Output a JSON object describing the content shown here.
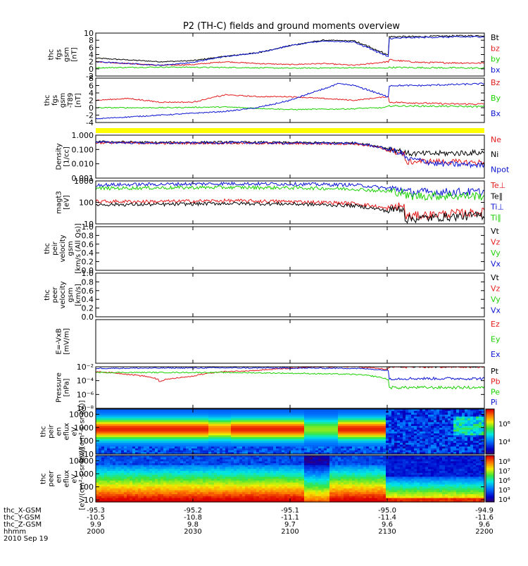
{
  "title": "P2 (TH-C) fields and ground moments overview",
  "chart_data": [
    {
      "type": "line",
      "ylabel": [
        "thc",
        "fgs",
        "gsm",
        "[nT]"
      ],
      "ylim": [
        -2,
        10
      ],
      "yticks": [
        -2,
        0,
        2,
        4,
        6,
        8,
        10
      ],
      "legend": [
        {
          "name": "Bt",
          "color": "#000000"
        },
        {
          "name": "bz",
          "color": "#e41a1c"
        },
        {
          "name": "by",
          "color": "#1bd100"
        },
        {
          "name": "bx",
          "color": "#0a14d2"
        }
      ],
      "series": [
        {
          "name": "Bt",
          "x": [
            2000,
            2010,
            2020,
            2030,
            2040,
            2050,
            2055,
            2060,
            2070,
            2080,
            2090,
            2100,
            2110,
            2120,
            2129,
            2131,
            2140,
            2150,
            2160,
            2170,
            2180,
            2190,
            2200
          ],
          "y": [
            3,
            2.5,
            2,
            2.3,
            3.5,
            4.5,
            5.5,
            6.5,
            8,
            7.8,
            4,
            2.6,
            2.4,
            2.1,
            1.5,
            9,
            9,
            9.2,
            9.3,
            9.5,
            9.8,
            9.7,
            9.5
          ]
        },
        {
          "name": "bz",
          "x": [
            2000,
            2010,
            2020,
            2030,
            2040,
            2050,
            2060,
            2070,
            2080,
            2090,
            2100,
            2110,
            2120,
            2129,
            2131,
            2140,
            2160,
            2180,
            2200
          ],
          "y": [
            2,
            1.5,
            1,
            1.2,
            2,
            1.5,
            1.2,
            1.5,
            1,
            2,
            2,
            2.2,
            2,
            1,
            2.5,
            1.8,
            1.6,
            1.2,
            1.5
          ]
        },
        {
          "name": "by",
          "x": [
            2000,
            2020,
            2040,
            2060,
            2080,
            2100,
            2120,
            2129,
            2131,
            2160,
            2200
          ],
          "y": [
            0.3,
            0.5,
            0.4,
            0.2,
            0.3,
            0.6,
            0.3,
            0.2,
            0.4,
            0.2,
            0.3
          ]
        },
        {
          "name": "bx",
          "x": [
            2000,
            2010,
            2020,
            2030,
            2040,
            2050,
            2060,
            2070,
            2080,
            2090,
            2100,
            2110,
            2120,
            2129,
            2131,
            2140,
            2160,
            2180,
            2200
          ],
          "y": [
            2,
            1.5,
            1,
            1.8,
            3.5,
            4.5,
            6.5,
            7.8,
            7.5,
            3.5,
            0.5,
            -0.5,
            0,
            -0.5,
            8.5,
            8.8,
            9,
            9.5,
            9.4
          ]
        }
      ]
    },
    {
      "type": "line",
      "ylabel": [
        "thc",
        "fgs",
        "gsm",
        "-T89",
        "[nT]"
      ],
      "ylim": [
        -4,
        8
      ],
      "yticks": [
        -4,
        -2,
        0,
        2,
        4,
        6,
        8
      ],
      "legend": [
        {
          "name": "Bz",
          "color": "#e41a1c"
        },
        {
          "name": "By",
          "color": "#1bd100"
        },
        {
          "name": "Bx",
          "color": "#0a14d2"
        }
      ],
      "series": [
        {
          "name": "Bz",
          "x": [
            2000,
            2010,
            2020,
            2030,
            2040,
            2050,
            2060,
            2070,
            2080,
            2090,
            2100,
            2110,
            2120,
            2129,
            2131,
            2150,
            2170,
            2200
          ],
          "y": [
            2,
            2.5,
            1.5,
            1.5,
            3.5,
            3,
            3,
            2.5,
            2,
            3,
            4,
            3,
            3,
            2,
            1.5,
            1,
            1,
            1.2
          ]
        },
        {
          "name": "By",
          "x": [
            2000,
            2020,
            2040,
            2060,
            2080,
            2100,
            2120,
            2129,
            2131,
            2160,
            2200
          ],
          "y": [
            0,
            0,
            0.2,
            -0.5,
            -0.3,
            0,
            -0.2,
            0,
            0.5,
            0.3,
            0.4
          ]
        },
        {
          "name": "Bx",
          "x": [
            2000,
            2010,
            2020,
            2030,
            2040,
            2050,
            2060,
            2070,
            2075,
            2080,
            2090,
            2100,
            2110,
            2120,
            2129,
            2131,
            2140,
            2160,
            2180,
            2200
          ],
          "y": [
            -3,
            -2.5,
            -2,
            -1.5,
            -1,
            0,
            2,
            5,
            6.5,
            6,
            3,
            0,
            -2,
            -3,
            -2,
            6,
            6,
            6.5,
            7.5,
            7
          ]
        }
      ]
    },
    {
      "type": "line",
      "ylabel": [
        "Density",
        "[1/cc]"
      ],
      "yscale": "log",
      "ylim": [
        0.001,
        1
      ],
      "yticks": [
        0.001,
        0.01,
        0.1,
        1
      ],
      "ytick_labels": [
        "0.001",
        "0.010",
        "0.100",
        "1.000"
      ],
      "legend": [
        {
          "name": "Ne",
          "color": "#e41a1c"
        },
        {
          "name": "Ni",
          "color": "#000000"
        },
        {
          "name": "Npot",
          "color": "#0a14d2"
        }
      ],
      "series": [
        {
          "name": "Ni",
          "x": [
            2000,
            2020,
            2040,
            2060,
            2080,
            2090,
            2095,
            2100,
            2110,
            2129,
            2131,
            2140,
            2160,
            2180,
            2200
          ],
          "y": [
            0.35,
            0.3,
            0.32,
            0.3,
            0.28,
            0.12,
            0.07,
            0.2,
            0.3,
            0.25,
            0.06,
            0.05,
            0.06,
            0.05,
            0.06
          ]
        },
        {
          "name": "Ne",
          "x": [
            2000,
            2020,
            2040,
            2060,
            2080,
            2090,
            2095,
            2100,
            2110,
            2129,
            2131,
            2140,
            2160,
            2180,
            2200
          ],
          "y": [
            0.3,
            0.27,
            0.28,
            0.26,
            0.25,
            0.09,
            0.05,
            0.18,
            0.28,
            0.22,
            0.01,
            0.015,
            0.012,
            0.03,
            0.04
          ]
        },
        {
          "name": "Npot",
          "x": [
            2000,
            2020,
            2040,
            2060,
            2080,
            2090,
            2095,
            2100,
            2110,
            2129,
            2131,
            2145,
            2160,
            2175,
            2185,
            2200
          ],
          "y": [
            0.32,
            0.28,
            0.3,
            0.28,
            0.27,
            0.1,
            0.05,
            0.19,
            0.28,
            0.24,
            0.03,
            0.01,
            0.008,
            0.02,
            0.006,
            0.004
          ]
        }
      ]
    },
    {
      "type": "line",
      "ylabel": [
        "magt3",
        "[eV]"
      ],
      "yscale": "log",
      "ylim": [
        10,
        1000
      ],
      "yticks": [
        10,
        100,
        1000
      ],
      "ytick_labels": [
        "10",
        "100",
        "1000"
      ],
      "legend": [
        {
          "name": "Te⊥",
          "color": "#e41a1c"
        },
        {
          "name": "Te∥",
          "color": "#000000"
        },
        {
          "name": "Ti⊥",
          "color": "#0a14d2"
        },
        {
          "name": "Ti∥",
          "color": "#1bd100"
        }
      ],
      "series": [
        {
          "name": "Ti⊥",
          "x": [
            2000,
            2020,
            2040,
            2060,
            2080,
            2090,
            2095,
            2100,
            2129,
            2131,
            2160,
            2200
          ],
          "y": [
            650,
            700,
            750,
            720,
            650,
            450,
            400,
            650,
            700,
            300,
            300,
            280
          ]
        },
        {
          "name": "Ti∥",
          "x": [
            2000,
            2020,
            2040,
            2060,
            2080,
            2090,
            2095,
            2100,
            2129,
            2131,
            2160,
            2200
          ],
          "y": [
            450,
            480,
            500,
            480,
            420,
            320,
            300,
            430,
            450,
            200,
            200,
            190
          ]
        },
        {
          "name": "Te⊥",
          "x": [
            2000,
            2020,
            2040,
            2060,
            2080,
            2090,
            2095,
            2100,
            2129,
            2131,
            2160,
            2200
          ],
          "y": [
            110,
            110,
            120,
            110,
            90,
            50,
            70,
            100,
            110,
            20,
            35,
            40
          ]
        },
        {
          "name": "Te∥",
          "x": [
            2000,
            2020,
            2040,
            2060,
            2080,
            2090,
            2095,
            2100,
            2129,
            2131,
            2160,
            2200
          ],
          "y": [
            80,
            80,
            90,
            85,
            70,
            40,
            55,
            75,
            80,
            15,
            25,
            30
          ]
        }
      ]
    },
    {
      "type": "line",
      "ylabel": [
        "thc",
        "peir",
        "velocity",
        "gsm",
        "[km/s (All Qs)]"
      ],
      "ylim": [
        0,
        1
      ],
      "yticks": [
        0,
        0.2,
        0.4,
        0.6,
        0.8,
        1.0
      ],
      "ytick_labels": [
        "0.0",
        "0.2",
        "0.4",
        "0.6",
        "0.8",
        "1.0"
      ],
      "legend": [
        {
          "name": "Vt",
          "color": "#000000"
        },
        {
          "name": "Vz",
          "color": "#e41a1c"
        },
        {
          "name": "Vy",
          "color": "#1bd100"
        },
        {
          "name": "Vx",
          "color": "#0a14d2"
        }
      ],
      "series": []
    },
    {
      "type": "line",
      "ylabel": [
        "thc",
        "peer",
        "velocity",
        "gsm",
        "[km/s]"
      ],
      "ylim": [
        0,
        1
      ],
      "yticks": [
        0,
        0.2,
        0.4,
        0.6,
        0.8,
        1.0
      ],
      "ytick_labels": [
        "0.0",
        "0.2",
        "0.4",
        "0.6",
        "0.8",
        "1.0"
      ],
      "legend": [
        {
          "name": "Vt",
          "color": "#000000"
        },
        {
          "name": "Vz",
          "color": "#e41a1c"
        },
        {
          "name": "Vy",
          "color": "#1bd100"
        },
        {
          "name": "Vx",
          "color": "#0a14d2"
        }
      ],
      "series": []
    },
    {
      "type": "line",
      "ylabel": [
        "E=-VxB",
        "[mV/m]"
      ],
      "legend": [
        {
          "name": "Ez",
          "color": "#e41a1c"
        },
        {
          "name": "Ey",
          "color": "#1bd100"
        },
        {
          "name": "Ex",
          "color": "#0a14d2"
        }
      ],
      "series": []
    },
    {
      "type": "line",
      "ylabel": [
        "Pressure",
        "[nPa]"
      ],
      "yscale": "log",
      "ylim": [
        1e-08,
        0.01
      ],
      "yticks": [
        1e-08,
        1e-06,
        0.0001,
        0.01
      ],
      "ytick_labels": [
        "10⁻⁸",
        "10⁻⁶",
        "10⁻⁴",
        "10⁻²"
      ],
      "legend": [
        {
          "name": "Pt",
          "color": "#000000"
        },
        {
          "name": "Pb",
          "color": "#e41a1c"
        },
        {
          "name": "Pe",
          "color": "#1bd100"
        },
        {
          "name": "Pi",
          "color": "#0a14d2"
        }
      ],
      "series": [
        {
          "name": "Pt",
          "x": [
            2000,
            2200
          ],
          "y": [
            0.012,
            0.012
          ]
        },
        {
          "name": "Pb",
          "x": [
            2000,
            2010,
            2020,
            2030,
            2040,
            2050,
            2060,
            2070,
            2080,
            2090,
            2100,
            2110,
            2120,
            2129,
            2131,
            2140,
            2160,
            2180,
            2200
          ],
          "y": [
            0.002,
            0.0008,
            8e-05,
            0.0004,
            0.002,
            0.003,
            0.006,
            0.01,
            0.01,
            0.004,
            0.001,
            0.0008,
            0.0004,
            0.0001,
            0.01,
            0.01,
            0.011,
            0.012,
            0.012
          ]
        },
        {
          "name": "Pe",
          "x": [
            2000,
            2040,
            2080,
            2090,
            2100,
            2110,
            2120,
            2129,
            2131,
            2160,
            2200
          ],
          "y": [
            0.0015,
            0.0015,
            0.0008,
            0.00015,
            0.0005,
            0.0008,
            0.0008,
            0.0006,
            1e-05,
            1e-05,
            2e-05
          ]
        },
        {
          "name": "Pi",
          "x": [
            2000,
            2040,
            2080,
            2090,
            2100,
            2110,
            2120,
            2129,
            2131,
            2160,
            2200
          ],
          "y": [
            0.006,
            0.007,
            0.006,
            0.003,
            0.004,
            0.006,
            0.006,
            0.005,
            0.0002,
            0.0002,
            0.00025
          ]
        }
      ]
    },
    {
      "type": "heatmap",
      "ylabel": [
        "thc",
        "peir",
        "en",
        "eflux",
        "eV",
        "[eV/(cm²-s-sr-eV)]"
      ],
      "yscale": "log",
      "ylim": [
        10,
        25000
      ],
      "yticks": [
        10,
        100,
        1000,
        10000
      ],
      "ytick_labels": [
        "10",
        "100",
        "1000",
        "10000"
      ],
      "colorbar_ticks": [
        "10⁶",
        "10⁴"
      ],
      "colorbar_range": [
        1000,
        5000000
      ]
    },
    {
      "type": "heatmap",
      "ylabel": [
        "thc",
        "peer",
        "en",
        "eflux",
        "eV",
        "[eV/(cm²-s-sr-eV)]"
      ],
      "yscale": "log",
      "ylim": [
        7,
        25000
      ],
      "yticks": [
        10,
        100,
        1000,
        10000
      ],
      "ytick_labels": [
        "10",
        "100",
        "1000",
        "10000"
      ],
      "colorbar_ticks": [
        "10⁸",
        "10⁷",
        "10⁶",
        "10⁵",
        "10⁴"
      ],
      "colorbar_range": [
        5000,
        200000000
      ]
    }
  ],
  "ephemeris": {
    "row_labels": [
      "thc_X-GSM",
      "thc_Y-GSM",
      "thc_Z-GSM",
      "hhmm",
      "2010 Sep 19"
    ],
    "columns": [
      {
        "x": 2000,
        "values": [
          "-95.3",
          "-10.5",
          "9.9",
          "2000"
        ]
      },
      {
        "x": 2030,
        "values": [
          "-95.2",
          "-10.8",
          "9.8",
          "2030"
        ]
      },
      {
        "x": 2100,
        "values": [
          "-95.1",
          "-11.1",
          "9.7",
          "2100"
        ]
      },
      {
        "x": 2130,
        "values": [
          "-95.0",
          "-11.4",
          "9.6",
          "2130"
        ]
      },
      {
        "x": 2200,
        "values": [
          "-94.9",
          "-11.6",
          "9.6",
          "2200"
        ]
      }
    ]
  },
  "quality_bar_color": "#ffff00"
}
